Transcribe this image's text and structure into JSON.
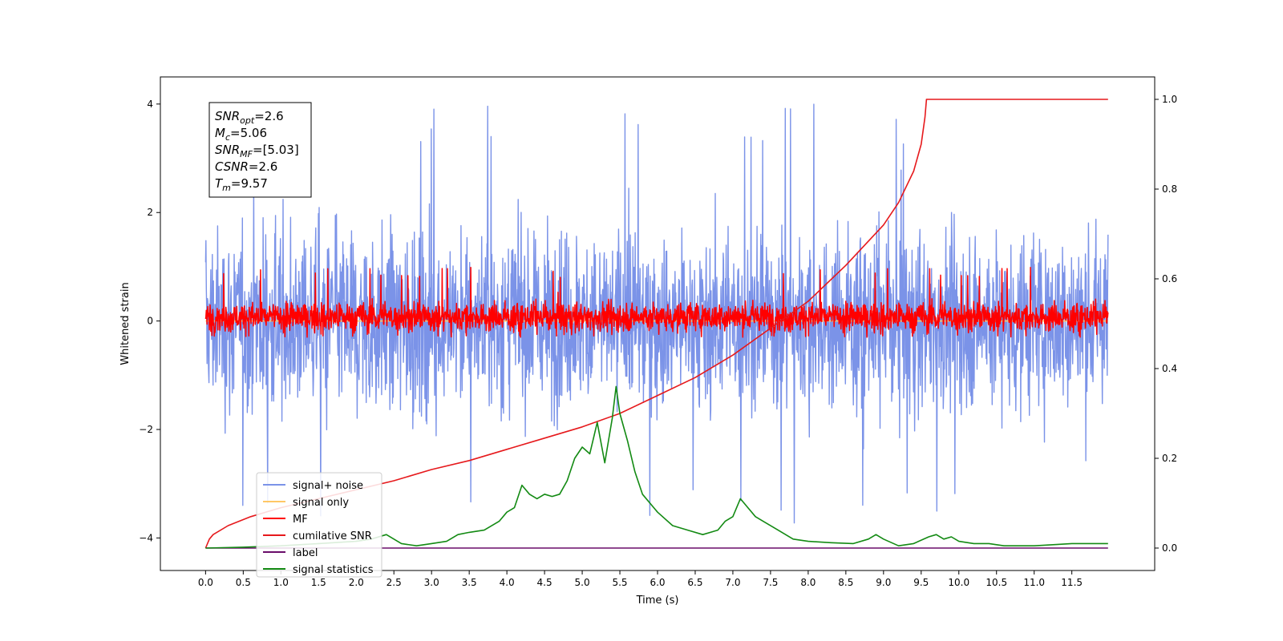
{
  "chart_data": {
    "type": "line",
    "xlabel": "Time (s)",
    "ylabel": "Whitened strain",
    "xlim": [
      -0.6,
      12.6
    ],
    "ylim": [
      -4.6,
      4.5
    ],
    "ylim_right": [
      -0.05,
      1.05
    ],
    "x_ticks": [
      0.0,
      0.5,
      1.0,
      1.5,
      2.0,
      2.5,
      3.0,
      3.5,
      4.0,
      4.5,
      5.0,
      5.5,
      6.0,
      6.5,
      7.0,
      7.5,
      8.0,
      8.5,
      9.0,
      9.5,
      10.0,
      10.5,
      11.0,
      11.5
    ],
    "x_tick_labels": [
      "0.0",
      "0.5",
      "1.0",
      "1.5",
      "2.0",
      "2.5",
      "3.0",
      "3.5",
      "4.0",
      "4.5",
      "5.0",
      "5.5",
      "6.0",
      "6.5",
      "7.0",
      "7.5",
      "8.0",
      "8.5",
      "9.0",
      "9.5",
      "10.0",
      "10.5",
      "11.0",
      "11.5"
    ],
    "y_ticks_left": [
      -4,
      -2,
      0,
      2,
      4
    ],
    "y_tick_labels_left": [
      "−4",
      "−2",
      "0",
      "2",
      "4"
    ],
    "y_ticks_right": [
      0.0,
      0.2,
      0.4,
      0.6,
      0.8,
      1.0
    ],
    "y_tick_labels_right": [
      "0.0",
      "0.2",
      "0.4",
      "0.6",
      "0.8",
      "1.0"
    ],
    "grid": false,
    "legend_position": "lower-left",
    "annotation_lines": [
      "SNR_opt=2.6",
      "M_c=5.06",
      "SNR_MF=[5.03]",
      "CSNR=2.6",
      "T_m=9.57"
    ],
    "colors": {
      "signal_noise": "#7b93e8",
      "signal_only": "#ffc766",
      "mf": "#ff0000",
      "cumulative": "#e6191c",
      "label": "#6a0d6a",
      "stats": "#138a13"
    },
    "series": [
      {
        "name": "signal+ noise",
        "axis": "left",
        "kind": "noise",
        "x_range": [
          0.0,
          11.98
        ],
        "typical_range": [
          -2.3,
          2.3
        ],
        "extreme_range": [
          -3.8,
          4.05
        ]
      },
      {
        "name": "signal only",
        "axis": "left",
        "kind": "line",
        "x": [
          0.0,
          11.98
        ],
        "y": [
          0.0,
          0.0
        ]
      },
      {
        "name": "MF",
        "axis": "left",
        "kind": "noise",
        "x_range": [
          0.0,
          11.98
        ],
        "typical_range": [
          -0.3,
          0.45
        ],
        "extreme_range": [
          -0.3,
          1.0
        ]
      },
      {
        "name": "cumilative SNR",
        "axis": "right",
        "kind": "line",
        "x": [
          0.0,
          0.05,
          0.1,
          0.3,
          0.6,
          1.0,
          1.5,
          2.0,
          2.5,
          3.0,
          3.5,
          4.0,
          4.5,
          5.0,
          5.5,
          6.0,
          6.5,
          7.0,
          7.5,
          8.0,
          8.5,
          9.0,
          9.2,
          9.4,
          9.5,
          9.55,
          9.57,
          9.6,
          10.0,
          11.0,
          11.98
        ],
        "y": [
          0.0,
          0.02,
          0.03,
          0.05,
          0.07,
          0.09,
          0.11,
          0.13,
          0.15,
          0.175,
          0.195,
          0.22,
          0.245,
          0.27,
          0.3,
          0.34,
          0.38,
          0.43,
          0.49,
          0.55,
          0.63,
          0.72,
          0.77,
          0.84,
          0.9,
          0.96,
          1.0,
          1.0,
          1.0,
          1.0,
          1.0
        ]
      },
      {
        "name": "label",
        "axis": "right",
        "kind": "line",
        "x": [
          0.0,
          11.98
        ],
        "y": [
          0.0,
          0.0
        ]
      },
      {
        "name": "signal statistics",
        "axis": "right",
        "kind": "line",
        "x": [
          0.0,
          0.5,
          1.0,
          1.5,
          2.0,
          2.2,
          2.4,
          2.6,
          2.8,
          3.0,
          3.2,
          3.35,
          3.5,
          3.7,
          3.9,
          4.0,
          4.1,
          4.2,
          4.3,
          4.4,
          4.5,
          4.6,
          4.7,
          4.8,
          4.9,
          5.0,
          5.1,
          5.2,
          5.3,
          5.4,
          5.45,
          5.5,
          5.6,
          5.7,
          5.8,
          6.0,
          6.2,
          6.4,
          6.6,
          6.8,
          6.9,
          7.0,
          7.1,
          7.2,
          7.3,
          7.4,
          7.6,
          7.8,
          8.0,
          8.3,
          8.6,
          8.8,
          8.9,
          9.0,
          9.2,
          9.4,
          9.6,
          9.7,
          9.8,
          9.9,
          10.0,
          10.2,
          10.4,
          10.6,
          11.0,
          11.5,
          11.98
        ],
        "y": [
          0.0,
          0.002,
          0.005,
          0.01,
          0.015,
          0.02,
          0.03,
          0.01,
          0.005,
          0.01,
          0.015,
          0.03,
          0.035,
          0.04,
          0.06,
          0.08,
          0.09,
          0.14,
          0.12,
          0.11,
          0.12,
          0.115,
          0.12,
          0.15,
          0.2,
          0.225,
          0.21,
          0.28,
          0.19,
          0.29,
          0.36,
          0.3,
          0.24,
          0.17,
          0.12,
          0.08,
          0.05,
          0.04,
          0.03,
          0.04,
          0.06,
          0.07,
          0.11,
          0.09,
          0.07,
          0.06,
          0.04,
          0.02,
          0.015,
          0.012,
          0.01,
          0.02,
          0.03,
          0.02,
          0.005,
          0.01,
          0.025,
          0.03,
          0.02,
          0.025,
          0.015,
          0.01,
          0.01,
          0.005,
          0.005,
          0.01,
          0.01
        ]
      }
    ]
  }
}
